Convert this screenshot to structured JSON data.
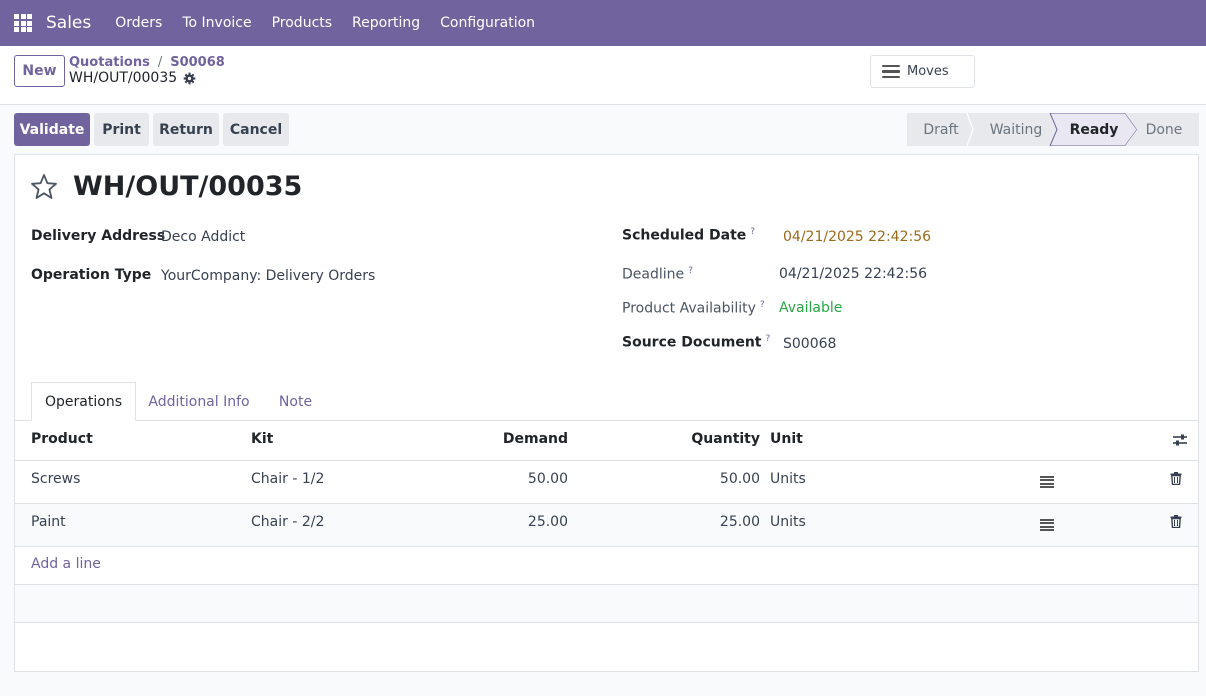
{
  "navbar": {
    "brand": "Sales",
    "items": [
      "Orders",
      "To Invoice",
      "Products",
      "Reporting",
      "Configuration"
    ]
  },
  "control_panel": {
    "new_label": "New",
    "breadcrumb": [
      "Quotations",
      "S00068"
    ],
    "record_name": "WH/OUT/00035",
    "moves_label": "Moves"
  },
  "actions": {
    "validate": "Validate",
    "print": "Print",
    "return": "Return",
    "cancel": "Cancel"
  },
  "status": {
    "stages": [
      "Draft",
      "Waiting",
      "Ready",
      "Done"
    ],
    "active": "Ready"
  },
  "form": {
    "title": "WH/OUT/00035",
    "delivery_address_label": "Delivery Address",
    "delivery_address": "Deco Addict",
    "operation_type_label": "Operation Type",
    "operation_type": "YourCompany: Delivery Orders",
    "scheduled_date_label": "Scheduled Date",
    "scheduled_date": "04/21/2025 22:42:56",
    "deadline_label": "Deadline",
    "deadline": "04/21/2025 22:42:56",
    "availability_label": "Product Availability",
    "availability": "Available",
    "source_label": "Source Document",
    "source": "S00068",
    "help_mark": "?"
  },
  "tabs": [
    "Operations",
    "Additional Info",
    "Note"
  ],
  "table": {
    "headers": {
      "product": "Product",
      "kit": "Kit",
      "demand": "Demand",
      "quantity": "Quantity",
      "unit": "Unit"
    },
    "rows": [
      {
        "product": "Screws",
        "kit": "Chair - 1/2",
        "demand": "50.00",
        "quantity": "50.00",
        "unit": "Units"
      },
      {
        "product": "Paint",
        "kit": "Chair - 2/2",
        "demand": "25.00",
        "quantity": "25.00",
        "unit": "Units"
      }
    ],
    "add_line": "Add a line"
  },
  "colors": {
    "brand": "#71639e",
    "scheduled_date": "#9a6b1a",
    "available": "#28a745"
  },
  "icons": {
    "apps": "apps-grid-icon",
    "gear": "gear-icon",
    "menu": "hamburger-icon",
    "star": "star-icon",
    "detail": "list-icon",
    "delete": "trash-icon",
    "optional_columns": "settings-sliders-icon"
  }
}
